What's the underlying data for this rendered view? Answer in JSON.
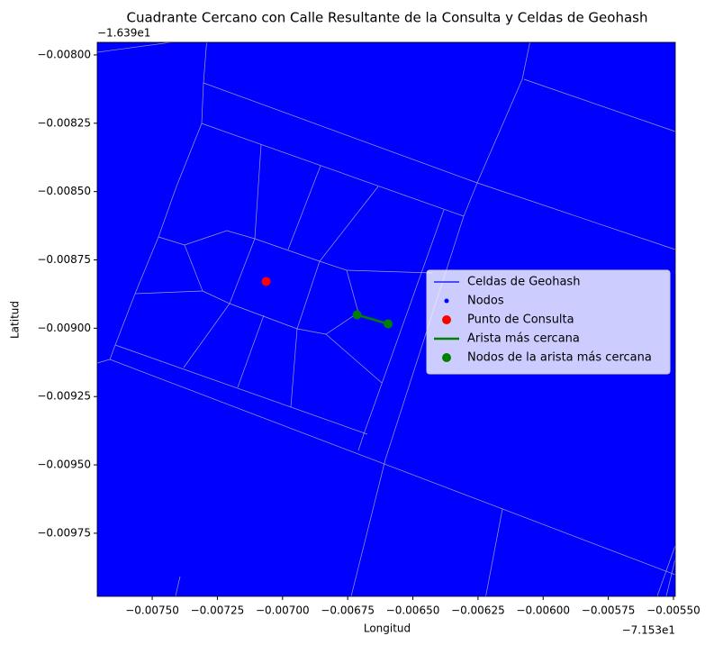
{
  "chart_data": {
    "type": "scatter",
    "title": "Cuadrante Cercano con Calle Resultante de la Consulta y Celdas de Geohash",
    "x_label": "Longitud",
    "y_label": "Latitud",
    "x_offset": "−7.153e1",
    "y_offset": "−1.639e1",
    "xlim": [
      -0.007711,
      -0.005493
    ],
    "ylim": [
      -0.009981,
      -0.007954
    ],
    "xticks": [
      {
        "value": -0.0075,
        "label": "−0.00750"
      },
      {
        "value": -0.00725,
        "label": "−0.00725"
      },
      {
        "value": -0.007,
        "label": "−0.00700"
      },
      {
        "value": -0.00675,
        "label": "−0.00675"
      },
      {
        "value": -0.0065,
        "label": "−0.00650"
      },
      {
        "value": -0.00625,
        "label": "−0.00625"
      },
      {
        "value": -0.006,
        "label": "−0.00600"
      },
      {
        "value": -0.00575,
        "label": "−0.00575"
      },
      {
        "value": -0.0055,
        "label": "−0.00550"
      }
    ],
    "yticks": [
      {
        "value": -0.008,
        "label": "−0.00800"
      },
      {
        "value": -0.00825,
        "label": "−0.00825"
      },
      {
        "value": -0.0085,
        "label": "−0.00850"
      },
      {
        "value": -0.00875,
        "label": "−0.00875"
      },
      {
        "value": -0.009,
        "label": "−0.00900"
      },
      {
        "value": -0.00925,
        "label": "−0.00925"
      },
      {
        "value": -0.0095,
        "label": "−0.00950"
      },
      {
        "value": -0.00975,
        "label": "−0.00975"
      }
    ],
    "legend": "right",
    "series": [
      {
        "name": "Celdas de Geohash",
        "color": "#0000ff",
        "style": "line"
      },
      {
        "name": "Nodos",
        "color": "#0000ff",
        "style": "dot"
      },
      {
        "name": "Punto de Consulta",
        "color": "#ff0000",
        "style": "point",
        "x": [
          -0.007063
        ],
        "y": [
          -0.008829
        ]
      },
      {
        "name": "Arista más cercana",
        "color": "#008000",
        "style": "line",
        "x": [
          -0.006714,
          -0.006595
        ],
        "y": [
          -0.008951,
          -0.008984
        ]
      },
      {
        "name": "Nodos de la arista más cercana",
        "color": "#008000",
        "style": "point",
        "x": [
          -0.006714,
          -0.006595
        ],
        "y": [
          -0.008951,
          -0.008984
        ]
      }
    ]
  }
}
